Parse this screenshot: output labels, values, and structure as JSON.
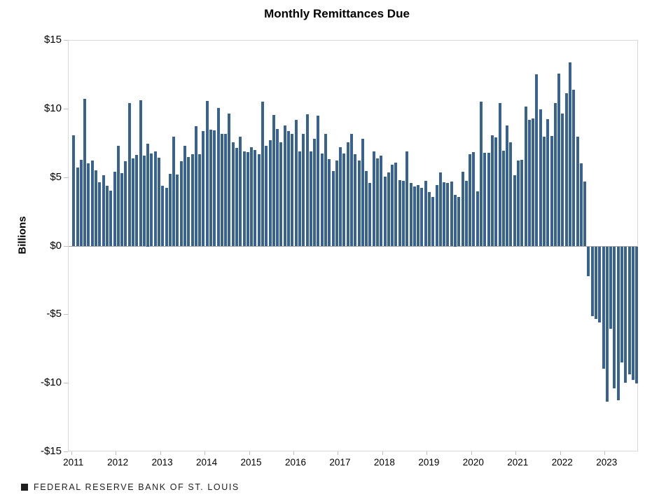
{
  "page": {
    "background_color": "#ffffff",
    "footer": {
      "source": "FEDERAL RESERVE BANK OF ST. LOUIS"
    }
  },
  "colors": {
    "bar": "#386390",
    "plot_border": "#d9d9d9",
    "zero_line": "#a6a6a6",
    "tick": "#bfbfbf",
    "text": "#000000",
    "footer_text": "#1f1f1f"
  },
  "chart_data": {
    "type": "bar",
    "title": "Monthly Remittances Due",
    "xlabel": "",
    "ylabel": "Billions",
    "unit": "USD billions",
    "ylim": [
      -15,
      15
    ],
    "ytick_step": 5,
    "ytick_labels": [
      "$15",
      "$10",
      "$5",
      "$0",
      "-$5",
      "-$10",
      "-$15"
    ],
    "grid": "off",
    "legend": "none",
    "x_start": "2011-01",
    "x_end": "2023-09",
    "year_labels": [
      "2011",
      "2012",
      "2013",
      "2014",
      "2015",
      "2016",
      "2017",
      "2018",
      "2019",
      "2020",
      "2021",
      "2022",
      "2023"
    ],
    "monthly_values": {
      "2011": [
        8.1,
        5.75,
        6.3,
        10.75,
        6.05,
        6.25,
        5.55,
        4.7,
        5.2,
        4.4,
        4.05,
        5.45
      ],
      "2012": [
        7.35,
        5.35,
        6.2,
        10.45,
        6.4,
        6.65,
        10.65,
        6.6,
        7.5,
        6.75,
        6.9,
        6.45
      ],
      "2013": [
        4.4,
        4.25,
        5.3,
        8.0,
        5.25,
        6.2,
        7.35,
        6.5,
        6.7,
        8.75,
        6.7,
        8.4
      ],
      "2014": [
        10.6,
        8.5,
        8.45,
        10.1,
        8.2,
        8.2,
        9.7,
        7.6,
        7.2,
        8.0,
        6.95,
        6.85
      ],
      "2015": [
        7.25,
        7.05,
        6.7,
        10.55,
        7.35,
        7.75,
        9.6,
        8.55,
        7.6,
        8.8,
        8.4,
        8.2
      ],
      "2016": [
        9.25,
        6.95,
        8.2,
        9.65,
        6.95,
        7.85,
        9.55,
        6.75,
        8.2,
        6.35,
        5.5,
        6.25
      ],
      "2017": [
        7.25,
        6.75,
        7.6,
        8.2,
        6.7,
        6.25,
        7.85,
        5.5,
        4.65,
        6.9,
        6.4,
        6.6
      ],
      "2018": [
        5.1,
        5.4,
        5.95,
        6.1,
        4.85,
        4.8,
        6.9,
        4.6,
        4.35,
        4.45,
        4.25,
        4.8
      ],
      "2019": [
        3.95,
        3.6,
        4.45,
        5.4,
        4.7,
        4.65,
        4.75,
        3.75,
        3.6,
        5.45,
        4.8,
        6.7
      ],
      "2020": [
        6.85,
        4.0,
        10.55,
        6.8,
        6.8,
        8.1,
        7.95,
        10.45,
        7.0,
        8.8,
        7.6,
        5.2
      ],
      "2021": [
        6.25,
        6.3,
        10.2,
        9.2,
        9.35,
        12.55,
        10.0,
        8.0,
        9.3,
        8.05,
        10.45,
        12.6
      ],
      "2022": [
        9.7,
        11.15,
        13.4,
        11.4,
        8.0,
        6.05,
        4.75,
        -2.15,
        -5.1,
        -5.3,
        -5.55,
        -8.9
      ],
      "2023": [
        -11.3,
        -6.0,
        -10.35,
        -11.2,
        -8.45,
        -9.95,
        -9.35,
        -9.75,
        -10.0
      ]
    }
  }
}
